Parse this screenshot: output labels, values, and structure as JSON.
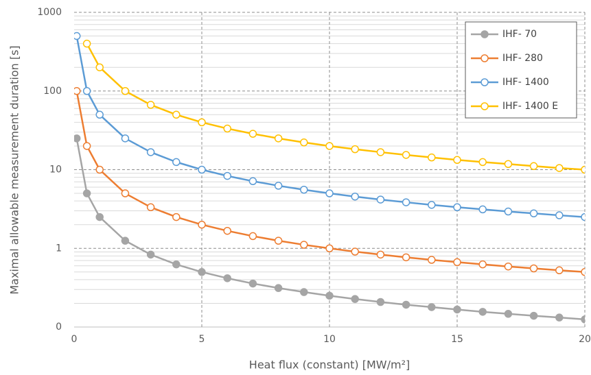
{
  "chart_data": {
    "type": "line",
    "x_label": "Heat flux (constant) [MW/m²]",
    "y_label": "Maximal allowable measurement duration [s]",
    "x": [
      0.1,
      0.5,
      1,
      2,
      3,
      4,
      5,
      6,
      7,
      8,
      9,
      10,
      11,
      12,
      13,
      14,
      15,
      16,
      17,
      18,
      19,
      20
    ],
    "series": [
      {
        "name": "IHF- 70",
        "color": "#a5a5a5",
        "marker_fill": "#a5a5a5",
        "values": [
          25,
          5,
          2.5,
          1.25,
          0.833,
          0.625,
          0.5,
          0.417,
          0.357,
          0.313,
          0.278,
          0.25,
          0.227,
          0.208,
          0.192,
          0.179,
          0.167,
          0.156,
          0.147,
          0.139,
          0.132,
          0.125
        ]
      },
      {
        "name": "IHF- 280",
        "color": "#ed7d31",
        "marker_fill": "#ffffff",
        "values": [
          100,
          20,
          10,
          5,
          3.33,
          2.5,
          2,
          1.67,
          1.43,
          1.25,
          1.11,
          1,
          0.909,
          0.833,
          0.769,
          0.714,
          0.667,
          0.625,
          0.588,
          0.556,
          0.526,
          0.5
        ]
      },
      {
        "name": "IHF- 1400",
        "color": "#5b9bd5",
        "marker_fill": "#ffffff",
        "values": [
          500,
          100,
          50,
          25,
          16.7,
          12.5,
          10,
          8.33,
          7.14,
          6.25,
          5.56,
          5,
          4.55,
          4.17,
          3.85,
          3.57,
          3.33,
          3.13,
          2.94,
          2.78,
          2.63,
          2.5
        ]
      },
      {
        "name": "IHF- 1400 E",
        "color": "#ffc000",
        "marker_fill": "#ffffff",
        "values": [
          null,
          400,
          200,
          100,
          66.7,
          50,
          40,
          33.3,
          28.6,
          25,
          22.2,
          20,
          18.2,
          16.7,
          15.4,
          14.3,
          13.3,
          12.5,
          11.8,
          11.1,
          10.5,
          10
        ]
      }
    ],
    "xlim": [
      0,
      20
    ],
    "xticks": [
      0,
      5,
      10,
      15,
      20
    ],
    "ylim": [
      0.1,
      1000
    ],
    "yticks": [
      {
        "value": 0.1,
        "label": "0"
      },
      1,
      10,
      100,
      1000
    ],
    "log_y": true,
    "grid": true,
    "minor_grid": true,
    "legend": "upper right"
  }
}
